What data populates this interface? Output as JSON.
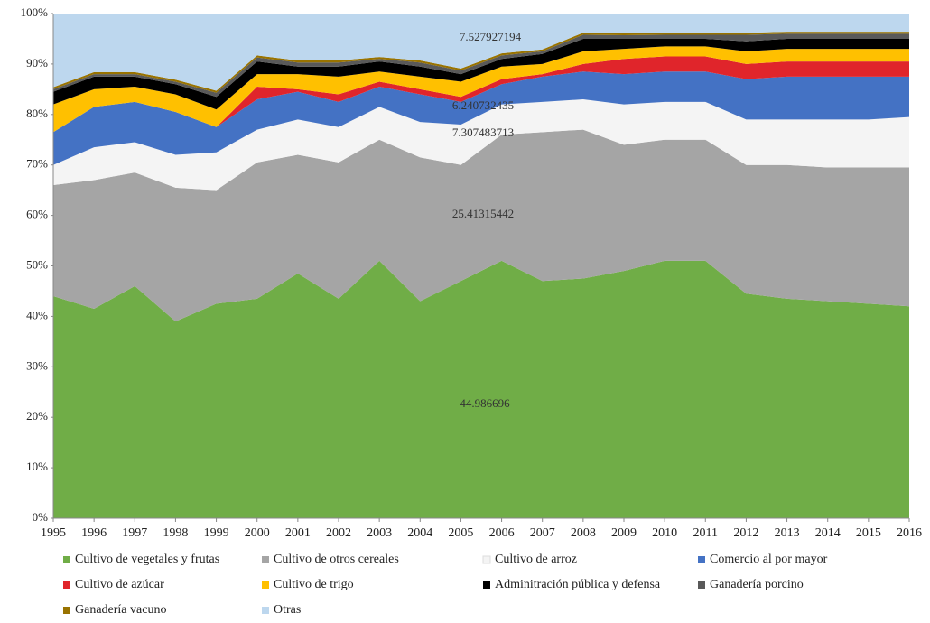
{
  "chart_data": {
    "type": "stacked_area_percent",
    "categories": [
      "1995",
      "1996",
      "1997",
      "1998",
      "1999",
      "2000",
      "2001",
      "2002",
      "2003",
      "2004",
      "2005",
      "2006",
      "2007",
      "2008",
      "2009",
      "2010",
      "2011",
      "2012",
      "2013",
      "2014",
      "2015",
      "2016"
    ],
    "ylim": [
      0,
      100
    ],
    "yticks": [
      {
        "value": 0,
        "label": "0%"
      },
      {
        "value": 10,
        "label": "10%"
      },
      {
        "value": 20,
        "label": "20%"
      },
      {
        "value": 30,
        "label": "30%"
      },
      {
        "value": 40,
        "label": "40%"
      },
      {
        "value": 50,
        "label": "50%"
      },
      {
        "value": 60,
        "label": "60%"
      },
      {
        "value": 70,
        "label": "70%"
      },
      {
        "value": 80,
        "label": "80%"
      },
      {
        "value": 90,
        "label": "90%"
      },
      {
        "value": 100,
        "label": "100%"
      }
    ],
    "series": [
      {
        "name": "Cultivo de vegetales y frutas",
        "color": "#70ad47",
        "values": [
          44,
          41.5,
          46,
          39,
          42.5,
          43.5,
          48.5,
          43.5,
          51,
          43,
          47,
          51,
          47,
          47.5,
          49,
          51,
          51,
          44.5,
          43.5,
          43,
          42.5,
          42
        ]
      },
      {
        "name": "Cultivo de otros cereales",
        "color": "#a5a5a5",
        "values": [
          22,
          25.5,
          22.5,
          26.5,
          22.5,
          27,
          23.5,
          27,
          24,
          28.5,
          23,
          25,
          29.5,
          29.5,
          25,
          24,
          24,
          25.5,
          26.5,
          26.5,
          27,
          27.5
        ]
      },
      {
        "name": "Cultivo de arroz",
        "color": "#f4f4f4",
        "values": [
          4,
          6.5,
          6,
          6.5,
          7.5,
          6.5,
          7,
          7,
          6.5,
          7,
          8,
          6,
          6,
          6,
          8,
          7.5,
          7.5,
          9,
          9,
          9.5,
          9.5,
          10
        ]
      },
      {
        "name": "Comercio al por mayor",
        "color": "#4472c4",
        "values": [
          6.5,
          8,
          8,
          8.5,
          5,
          6,
          5.5,
          5,
          4,
          5.5,
          4.5,
          4,
          5,
          5.5,
          6,
          6,
          6,
          8,
          8.5,
          8.5,
          8.5,
          8
        ]
      },
      {
        "name": "Cultivo de azúcar",
        "color": "#e0252b",
        "values": [
          0,
          0,
          0,
          0,
          0,
          2.5,
          0.5,
          1.5,
          1,
          1,
          1,
          1,
          0.5,
          1.5,
          3,
          3,
          3,
          3,
          3,
          3,
          3,
          3
        ]
      },
      {
        "name": "Cultivo de trigo",
        "color": "#ffc000",
        "values": [
          5.5,
          3.5,
          3,
          3.5,
          3.5,
          2.5,
          3,
          3.5,
          2,
          2.5,
          3,
          2.5,
          2,
          2.5,
          2,
          2,
          2,
          2.5,
          2.5,
          2.5,
          2.5,
          2.5
        ]
      },
      {
        "name": "Adminitración pública y defensa",
        "color": "#000000",
        "values": [
          2.5,
          2.5,
          2,
          2,
          2.5,
          2.5,
          1.5,
          2,
          2,
          2,
          1.5,
          1.5,
          2,
          2.5,
          2,
          1.5,
          1.5,
          2,
          2,
          2,
          2,
          2
        ]
      },
      {
        "name": "Ganadería porcino",
        "color": "#595959",
        "values": [
          0.5,
          0.5,
          0.5,
          0.5,
          0.8,
          0.8,
          0.8,
          0.8,
          0.5,
          0.8,
          0.7,
          0.7,
          0.5,
          0.8,
          0.7,
          0.8,
          0.8,
          1.3,
          1,
          1,
          1,
          1
        ]
      },
      {
        "name": "Ganadería vacuno",
        "color": "#997300",
        "values": [
          0.4,
          0.4,
          0.4,
          0.4,
          0.4,
          0.4,
          0.4,
          0.4,
          0.4,
          0.4,
          0.4,
          0.4,
          0.4,
          0.4,
          0.4,
          0.4,
          0.4,
          0.4,
          0.4,
          0.4,
          0.4,
          0.4
        ]
      },
      {
        "name": "Otras",
        "color": "#bdd7ee",
        "values": [
          14.6,
          11.6,
          11.6,
          13.1,
          15.3,
          8.3,
          9.3,
          9.3,
          8.6,
          9.3,
          10.9,
          7.9,
          7.1,
          3.8,
          3.9,
          3.8,
          3.8,
          3.8,
          3.6,
          3.6,
          3.6,
          3.6
        ]
      }
    ],
    "annotations": [
      "7.527927194",
      "6.240732435",
      "7.307483713",
      "25.41315442",
      "44.986696"
    ]
  }
}
